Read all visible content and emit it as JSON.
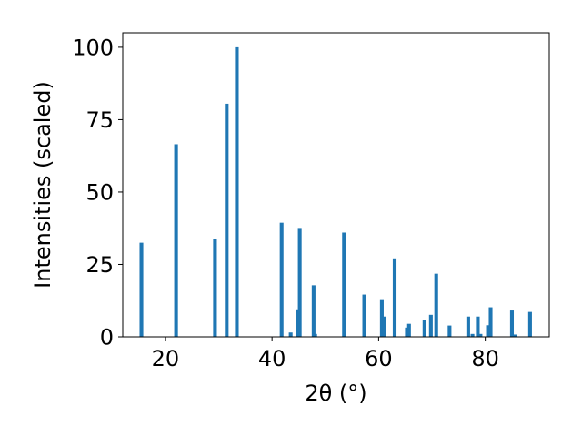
{
  "chart_data": {
    "type": "bar",
    "xlabel": "2θ (°)",
    "ylabel": "Intensities (scaled)",
    "title": "",
    "xlim": [
      12,
      92
    ],
    "ylim": [
      0,
      105
    ],
    "xticks": [
      20,
      40,
      60,
      80
    ],
    "yticks": [
      0,
      25,
      50,
      75,
      100
    ],
    "grid": false,
    "bar_color": "#1f77b4",
    "bar_width": 0.7,
    "series": [
      {
        "x": [
          15.5,
          22.0,
          29.3,
          31.5,
          33.4,
          41.8,
          43.5,
          44.9,
          45.2,
          47.8,
          48.1,
          53.5,
          57.3,
          60.6,
          61.1,
          63.0,
          65.3,
          65.7,
          68.6,
          69.8,
          70.8,
          73.3,
          76.8,
          77.6,
          78.6,
          79.1,
          80.5,
          81.0,
          85.0,
          85.6,
          88.4
        ],
        "y": [
          32.5,
          66.5,
          33.9,
          80.5,
          100.0,
          39.4,
          1.5,
          9.5,
          37.6,
          17.8,
          1.0,
          36.0,
          14.6,
          13.0,
          7.0,
          27.1,
          3.2,
          4.5,
          5.9,
          7.6,
          21.8,
          3.9,
          7.0,
          1.0,
          7.0,
          1.0,
          4.0,
          10.2,
          9.1,
          0.8,
          8.6
        ]
      }
    ]
  }
}
